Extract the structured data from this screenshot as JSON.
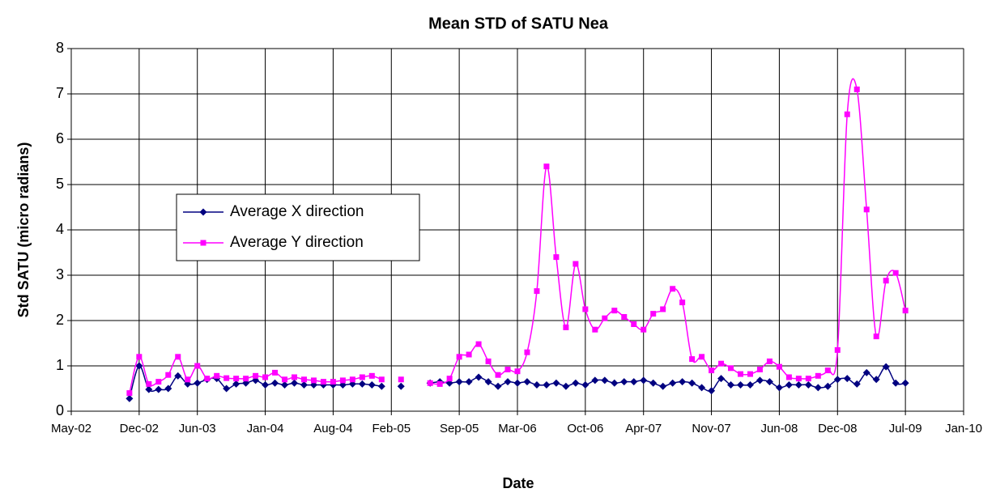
{
  "chart_data": {
    "type": "line",
    "title": "Mean STD of SATU Nea",
    "x_label": "Date",
    "y_label": "Std SATU (micro radians)",
    "x": [
      "2002-11",
      "2002-12",
      "2003-01",
      "2003-02",
      "2003-03",
      "2003-04",
      "2003-05",
      "2003-06",
      "2003-07",
      "2003-08",
      "2003-09",
      "2003-10",
      "2003-11",
      "2003-12",
      "2004-01",
      "2004-02",
      "2004-03",
      "2004-04",
      "2004-05",
      "2004-06",
      "2004-07",
      "2004-08",
      "2004-09",
      "2004-10",
      "2004-11",
      "2004-12",
      "2005-01",
      "2005-02",
      "2005-03",
      "2005-04",
      "2005-05",
      "2005-06",
      "2005-07",
      "2005-08",
      "2005-09",
      "2005-10",
      "2005-11",
      "2005-12",
      "2006-01",
      "2006-02",
      "2006-03",
      "2006-04",
      "2006-05",
      "2006-06",
      "2006-07",
      "2006-08",
      "2006-09",
      "2006-10",
      "2006-11",
      "2006-12",
      "2007-01",
      "2007-02",
      "2007-03",
      "2007-04",
      "2007-05",
      "2007-06",
      "2007-07",
      "2007-08",
      "2007-09",
      "2007-10",
      "2007-11",
      "2007-12",
      "2008-01",
      "2008-02",
      "2008-03",
      "2008-04",
      "2008-05",
      "2008-06",
      "2008-07",
      "2008-08",
      "2008-09",
      "2008-10",
      "2008-11",
      "2008-12",
      "2009-01",
      "2009-02",
      "2009-03",
      "2009-04",
      "2009-05",
      "2009-06",
      "2009-07"
    ],
    "series": [
      {
        "name": "Average X direction",
        "color": "#000080",
        "marker": "diamond",
        "values": [
          0.28,
          1.0,
          0.48,
          0.48,
          0.5,
          0.78,
          0.6,
          0.62,
          0.7,
          0.72,
          0.5,
          0.6,
          0.62,
          0.68,
          0.58,
          0.62,
          0.58,
          0.62,
          0.58,
          0.58,
          0.58,
          0.58,
          0.58,
          0.6,
          0.6,
          0.58,
          0.55,
          null,
          0.55,
          null,
          null,
          0.62,
          0.65,
          0.62,
          0.65,
          0.65,
          0.75,
          0.65,
          0.55,
          0.65,
          0.62,
          0.65,
          0.58,
          0.58,
          0.62,
          0.55,
          0.62,
          0.58,
          0.68,
          0.68,
          0.62,
          0.65,
          0.65,
          0.68,
          0.62,
          0.55,
          0.62,
          0.65,
          0.62,
          0.52,
          0.45,
          0.72,
          0.58,
          0.58,
          0.58,
          0.68,
          0.65,
          0.52,
          0.58,
          0.58,
          0.58,
          0.52,
          0.55,
          0.7,
          0.72,
          0.6,
          0.85,
          0.7,
          0.98,
          0.62,
          0.62
        ]
      },
      {
        "name": "Average Y direction",
        "color": "#FF00FF",
        "marker": "square",
        "values": [
          0.4,
          1.2,
          0.6,
          0.65,
          0.8,
          1.2,
          0.7,
          1.0,
          0.72,
          0.78,
          0.73,
          0.72,
          0.72,
          0.78,
          0.75,
          0.85,
          0.7,
          0.75,
          0.7,
          0.68,
          0.65,
          0.65,
          0.68,
          0.7,
          0.75,
          0.78,
          0.7,
          null,
          0.7,
          null,
          null,
          0.62,
          0.6,
          0.72,
          1.2,
          1.25,
          1.48,
          1.1,
          0.8,
          0.92,
          0.88,
          1.3,
          2.65,
          5.4,
          3.4,
          1.85,
          3.25,
          2.25,
          1.8,
          2.05,
          2.22,
          2.08,
          1.92,
          1.8,
          2.15,
          2.25,
          2.7,
          2.4,
          1.15,
          1.2,
          0.9,
          1.05,
          0.95,
          0.82,
          0.82,
          0.92,
          1.1,
          0.98,
          0.75,
          0.72,
          0.72,
          0.78,
          0.9,
          1.35,
          6.55,
          7.1,
          4.45,
          1.65,
          2.88,
          3.05,
          2.22
        ]
      }
    ],
    "xlim": [
      "2002-05",
      "2010-01"
    ],
    "xticks": [
      {
        "value": "2002-05",
        "label": "May-02"
      },
      {
        "value": "2002-12",
        "label": "Dec-02"
      },
      {
        "value": "2003-06",
        "label": "Jun-03"
      },
      {
        "value": "2004-01",
        "label": "Jan-04"
      },
      {
        "value": "2004-08",
        "label": "Aug-04"
      },
      {
        "value": "2005-02",
        "label": "Feb-05"
      },
      {
        "value": "2005-09",
        "label": "Sep-05"
      },
      {
        "value": "2006-03",
        "label": "Mar-06"
      },
      {
        "value": "2006-10",
        "label": "Oct-06"
      },
      {
        "value": "2007-04",
        "label": "Apr-07"
      },
      {
        "value": "2007-11",
        "label": "Nov-07"
      },
      {
        "value": "2008-06",
        "label": "Jun-08"
      },
      {
        "value": "2008-12",
        "label": "Dec-08"
      },
      {
        "value": "2009-07",
        "label": "Jul-09"
      },
      {
        "value": "2010-01",
        "label": "Jan-10"
      }
    ],
    "ylim": [
      0,
      8
    ],
    "yticks": [
      0,
      1,
      2,
      3,
      4,
      5,
      6,
      7,
      8
    ],
    "grid": true
  }
}
